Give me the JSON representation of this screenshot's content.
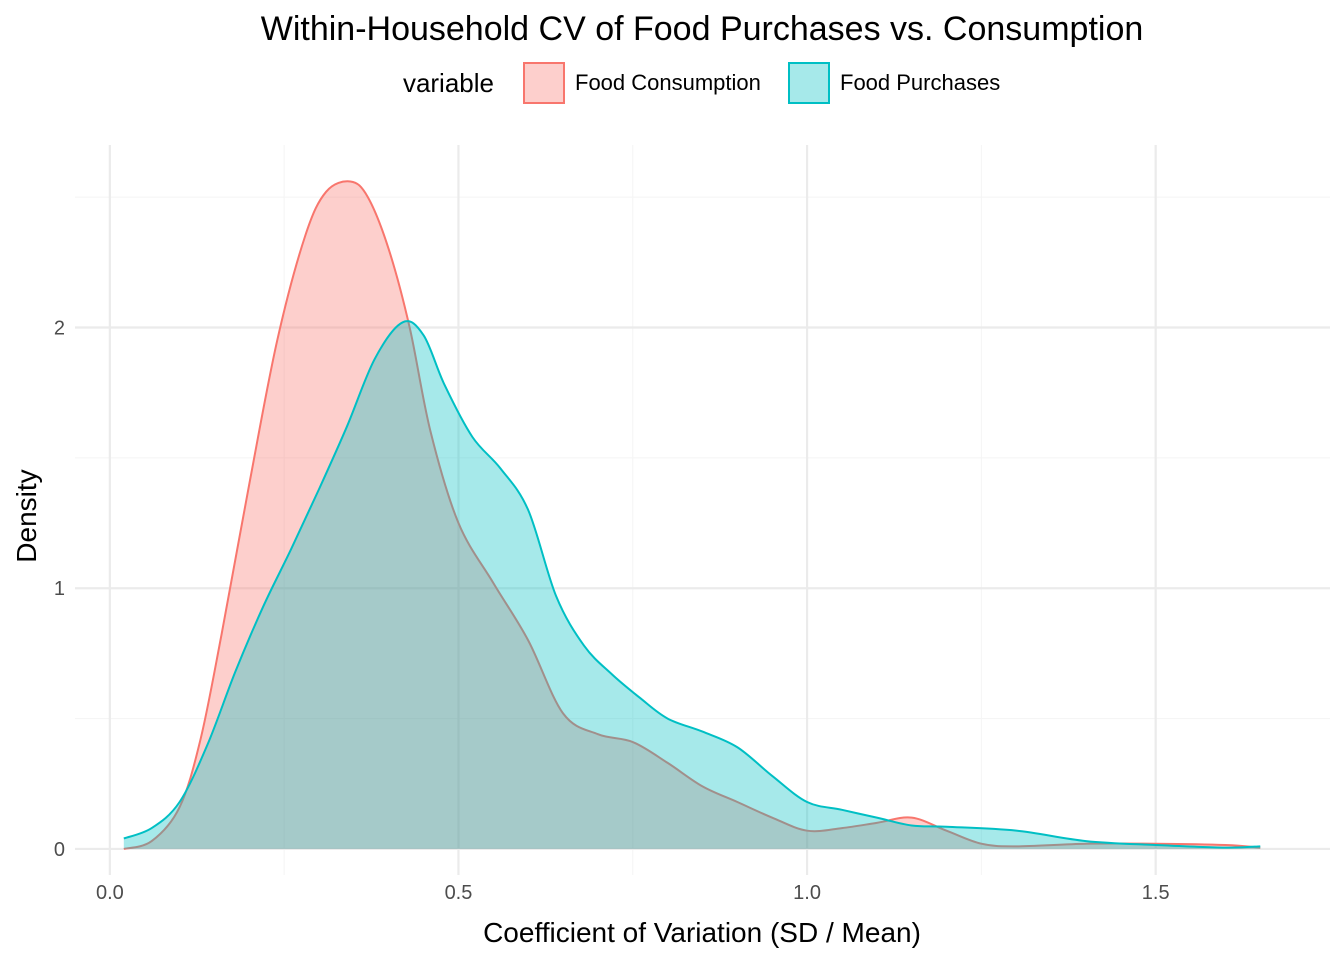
{
  "chart_data": {
    "type": "area",
    "title": "Within-Household CV of Food Purchases vs. Consumption",
    "xlabel": "Coefficient of Variation (SD / Mean)",
    "ylabel": "Density",
    "xlim": [
      -0.05,
      1.75
    ],
    "ylim": [
      -0.1,
      2.7
    ],
    "xticks": [
      0.0,
      0.5,
      1.0,
      1.5
    ],
    "xtick_labels": [
      "0.0",
      "0.5",
      "1.0",
      "1.5"
    ],
    "yticks": [
      0,
      1,
      2
    ],
    "ytick_labels": [
      "0",
      "1",
      "2"
    ],
    "grid": true,
    "legend": {
      "title": "variable",
      "position": "top"
    },
    "series": [
      {
        "name": "Food Consumption",
        "color": "#F8766D",
        "fill": "#F8766D",
        "x": [
          0.02,
          0.06,
          0.1,
          0.13,
          0.16,
          0.2,
          0.24,
          0.28,
          0.31,
          0.345,
          0.37,
          0.4,
          0.43,
          0.46,
          0.5,
          0.55,
          0.6,
          0.65,
          0.7,
          0.75,
          0.8,
          0.85,
          0.9,
          0.95,
          1.0,
          1.05,
          1.1,
          1.15,
          1.2,
          1.25,
          1.3,
          1.4,
          1.5,
          1.6,
          1.65
        ],
        "values": [
          0.0,
          0.03,
          0.16,
          0.42,
          0.82,
          1.4,
          1.95,
          2.35,
          2.52,
          2.56,
          2.5,
          2.3,
          2.0,
          1.6,
          1.25,
          1.02,
          0.8,
          0.52,
          0.44,
          0.41,
          0.33,
          0.24,
          0.18,
          0.12,
          0.07,
          0.08,
          0.1,
          0.12,
          0.07,
          0.02,
          0.01,
          0.02,
          0.02,
          0.015,
          0.005
        ]
      },
      {
        "name": "Food Purchases",
        "color": "#00BFC4",
        "fill": "#00BFC4",
        "x": [
          0.02,
          0.06,
          0.1,
          0.14,
          0.18,
          0.22,
          0.26,
          0.3,
          0.34,
          0.38,
          0.42,
          0.45,
          0.48,
          0.52,
          0.56,
          0.6,
          0.64,
          0.68,
          0.72,
          0.76,
          0.8,
          0.85,
          0.9,
          0.95,
          1.0,
          1.05,
          1.1,
          1.15,
          1.2,
          1.3,
          1.4,
          1.5,
          1.6,
          1.65
        ],
        "values": [
          0.04,
          0.08,
          0.18,
          0.4,
          0.68,
          0.93,
          1.15,
          1.38,
          1.62,
          1.88,
          2.02,
          1.97,
          1.78,
          1.58,
          1.46,
          1.3,
          0.97,
          0.78,
          0.67,
          0.58,
          0.5,
          0.45,
          0.39,
          0.28,
          0.18,
          0.15,
          0.12,
          0.09,
          0.085,
          0.07,
          0.03,
          0.015,
          0.005,
          0.01
        ]
      }
    ]
  }
}
